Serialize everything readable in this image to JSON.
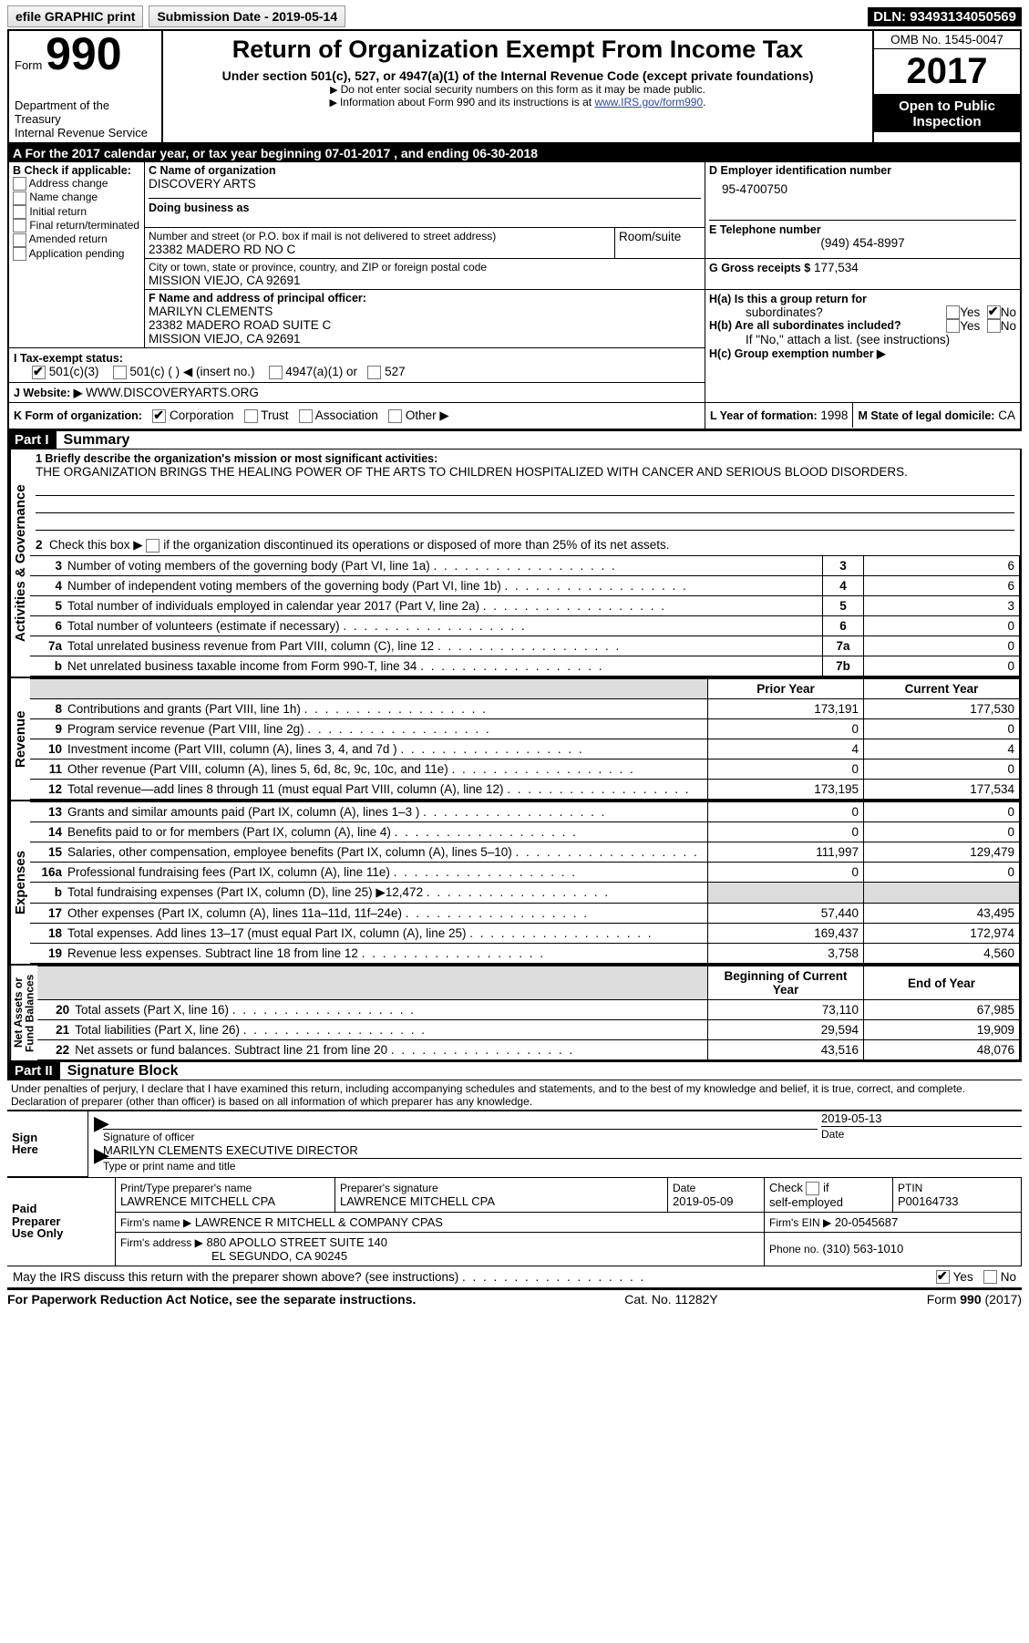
{
  "topbar": {
    "efile_btn": "efile GRAPHIC print",
    "submission_label": "Submission Date - 2019-05-14",
    "dln": "DLN: 93493134050569"
  },
  "header": {
    "form_word": "Form",
    "form_num": "990",
    "dept1": "Department of the Treasury",
    "dept2": "Internal Revenue Service",
    "title": "Return of Organization Exempt From Income Tax",
    "subtitle": "Under section 501(c), 527, or 4947(a)(1) of the Internal Revenue Code (except private foundations)",
    "note1": "Do not enter social security numbers on this form as it may be made public.",
    "note2_pre": "Information about Form 990 and its instructions is at ",
    "note2_link": "www.IRS.gov/form990",
    "note2_post": ".",
    "omb_label": "OMB No. 1545-0047",
    "year": "2017",
    "public1": "Open to Public",
    "public2": "Inspection"
  },
  "bandA": "A   For the 2017 calendar year, or tax year beginning 07-01-2017   , and ending 06-30-2018",
  "secB": {
    "title": "B Check if applicable:",
    "opts": [
      "Address change",
      "Name change",
      "Initial return",
      "Final return/terminated",
      "Amended return",
      "Application pending"
    ]
  },
  "secC": {
    "name_label": "C Name of organization",
    "name": "DISCOVERY ARTS",
    "dba_label": "Doing business as",
    "addr_label": "Number and street (or P.O. box if mail is not delivered to street address)",
    "room_label": "Room/suite",
    "addr": "23382 MADERO RD NO C",
    "city_label": "City or town, state or province, country, and ZIP or foreign postal code",
    "city": "MISSION VIEJO, CA  92691"
  },
  "secD": {
    "label": "D Employer identification number",
    "value": "95-4700750"
  },
  "secE": {
    "label": "E Telephone number",
    "value": "(949) 454-8997"
  },
  "secG": {
    "label": "G Gross receipts $",
    "value": "177,534"
  },
  "secF": {
    "label": "F Name and address of principal officer:",
    "l1": "MARILYN CLEMENTS",
    "l2": "23382 MADERO ROAD SUITE C",
    "l3": "MISSION VIEJO, CA  92691"
  },
  "secH": {
    "a": "H(a)  Is this a group return for",
    "a2": "subordinates?",
    "b": "H(b)  Are all subordinates included?",
    "note": "If \"No,\" attach a list. (see instructions)",
    "c": "H(c)  Group exemption number ▶",
    "yes": "Yes",
    "no": "No"
  },
  "secI": {
    "label": "I   Tax-exempt status:",
    "o1": "501(c)(3)",
    "o2": "501(c) (   ) ◀ (insert no.)",
    "o3": "4947(a)(1) or",
    "o4": "527"
  },
  "secJ": {
    "label": "J   Website: ▶",
    "value": "WWW.DISCOVERYARTS.ORG"
  },
  "secK": {
    "label": "K Form of organization:",
    "opts": [
      "Corporation",
      "Trust",
      "Association",
      "Other ▶"
    ]
  },
  "secL": {
    "label": "L Year of formation:",
    "value": "1998"
  },
  "secM": {
    "label": "M State of legal domicile:",
    "value": "CA"
  },
  "part1": {
    "part": "Part I",
    "title": "Summary",
    "vtabs": [
      "Activities & Governance",
      "Revenue",
      "Expenses",
      "Net Assets or\nFund Balances"
    ],
    "mission_label": "1  Briefly describe the organization's mission or most significant activities:",
    "mission": "THE ORGANIZATION BRINGS THE HEALING POWER OF THE ARTS TO CHILDREN HOSPITALIZED WITH CANCER AND SERIOUS BLOOD DISORDERS.",
    "line2": "2   Check this box ▶        if the organization discontinued its operations or disposed of more than 25% of its net assets.",
    "col_prior": "Prior Year",
    "col_current": "Current Year",
    "col_beg": "Beginning of Current Year",
    "col_end": "End of Year",
    "rows_gov": [
      {
        "n": "3",
        "t": "Number of voting members of the governing body (Part VI, line 1a)",
        "k": "3",
        "v": "6"
      },
      {
        "n": "4",
        "t": "Number of independent voting members of the governing body (Part VI, line 1b)",
        "k": "4",
        "v": "6"
      },
      {
        "n": "5",
        "t": "Total number of individuals employed in calendar year 2017 (Part V, line 2a)",
        "k": "5",
        "v": "3"
      },
      {
        "n": "6",
        "t": "Total number of volunteers (estimate if necessary)",
        "k": "6",
        "v": "0"
      },
      {
        "n": "7a",
        "t": "Total unrelated business revenue from Part VIII, column (C), line 12",
        "k": "7a",
        "v": "0"
      },
      {
        "n": "b",
        "t": "Net unrelated business taxable income from Form 990-T, line 34",
        "k": "7b",
        "v": "0"
      }
    ],
    "rows_rev": [
      {
        "n": "8",
        "t": "Contributions and grants (Part VIII, line 1h)",
        "p": "173,191",
        "c": "177,530"
      },
      {
        "n": "9",
        "t": "Program service revenue (Part VIII, line 2g)",
        "p": "0",
        "c": "0"
      },
      {
        "n": "10",
        "t": "Investment income (Part VIII, column (A), lines 3, 4, and 7d )",
        "p": "4",
        "c": "4"
      },
      {
        "n": "11",
        "t": "Other revenue (Part VIII, column (A), lines 5, 6d, 8c, 9c, 10c, and 11e)",
        "p": "0",
        "c": "0"
      },
      {
        "n": "12",
        "t": "Total revenue—add lines 8 through 11 (must equal Part VIII, column (A), line 12)",
        "p": "173,195",
        "c": "177,534"
      }
    ],
    "rows_exp": [
      {
        "n": "13",
        "t": "Grants and similar amounts paid (Part IX, column (A), lines 1–3 )",
        "p": "0",
        "c": "0"
      },
      {
        "n": "14",
        "t": "Benefits paid to or for members (Part IX, column (A), line 4)",
        "p": "0",
        "c": "0"
      },
      {
        "n": "15",
        "t": "Salaries, other compensation, employee benefits (Part IX, column (A), lines 5–10)",
        "p": "111,997",
        "c": "129,479"
      },
      {
        "n": "16a",
        "t": "Professional fundraising fees (Part IX, column (A), line 11e)",
        "p": "0",
        "c": "0"
      },
      {
        "n": "b",
        "t": "Total fundraising expenses (Part IX, column (D), line 25) ▶12,472",
        "p": "",
        "c": "",
        "shade": true
      },
      {
        "n": "17",
        "t": "Other expenses (Part IX, column (A), lines 11a–11d, 11f–24e)",
        "p": "57,440",
        "c": "43,495"
      },
      {
        "n": "18",
        "t": "Total expenses. Add lines 13–17 (must equal Part IX, column (A), line 25)",
        "p": "169,437",
        "c": "172,974"
      },
      {
        "n": "19",
        "t": "Revenue less expenses. Subtract line 18 from line 12",
        "p": "3,758",
        "c": "4,560"
      }
    ],
    "rows_net": [
      {
        "n": "20",
        "t": "Total assets (Part X, line 16)",
        "p": "73,110",
        "c": "67,985"
      },
      {
        "n": "21",
        "t": "Total liabilities (Part X, line 26)",
        "p": "29,594",
        "c": "19,909"
      },
      {
        "n": "22",
        "t": "Net assets or fund balances. Subtract line 21 from line 20",
        "p": "43,516",
        "c": "48,076"
      }
    ]
  },
  "part2": {
    "part": "Part II",
    "title": "Signature Block",
    "decl": "Under penalties of perjury, I declare that I have examined this return, including accompanying schedules and statements, and to the best of my knowledge and belief, it is true, correct, and complete. Declaration of preparer (other than officer) is based on all information of which preparer has any knowledge.",
    "sign_here": "Sign\nHere",
    "sig_officer": "Signature of officer",
    "date_label": "Date",
    "sig_date": "2019-05-13",
    "officer_name": "MARILYN CLEMENTS EXECUTIVE DIRECTOR",
    "type_label": "Type or print name and title",
    "paid": "Paid\nPreparer\nUse Only",
    "prep_name_label": "Print/Type preparer's name",
    "prep_name": "LAWRENCE MITCHELL CPA",
    "prep_sig_label": "Preparer's signature",
    "prep_sig": "LAWRENCE MITCHELL CPA",
    "prep_date_label": "Date",
    "prep_date": "2019-05-09",
    "check_label": "Check         if self-employed",
    "ptin_label": "PTIN",
    "ptin": "P00164733",
    "firm_name_label": "Firm's name      ▶",
    "firm_name": "LAWRENCE R MITCHELL & COMPANY CPAS",
    "firm_ein_label": "Firm's EIN ▶",
    "firm_ein": "20-0545687",
    "firm_addr_label": "Firm's address ▶",
    "firm_addr1": "880 APOLLO STREET SUITE 140",
    "firm_addr2": "EL SEGUNDO, CA  90245",
    "phone_label": "Phone no.",
    "phone": "(310) 563-1010",
    "discuss": "May the IRS discuss this return with the preparer shown above? (see instructions)",
    "yes": "Yes",
    "no": "No"
  },
  "footer": {
    "left": "For Paperwork Reduction Act Notice, see the separate instructions.",
    "mid": "Cat. No. 11282Y",
    "right_pre": "Form ",
    "right_bold": "990",
    "right_post": " (2017)"
  }
}
